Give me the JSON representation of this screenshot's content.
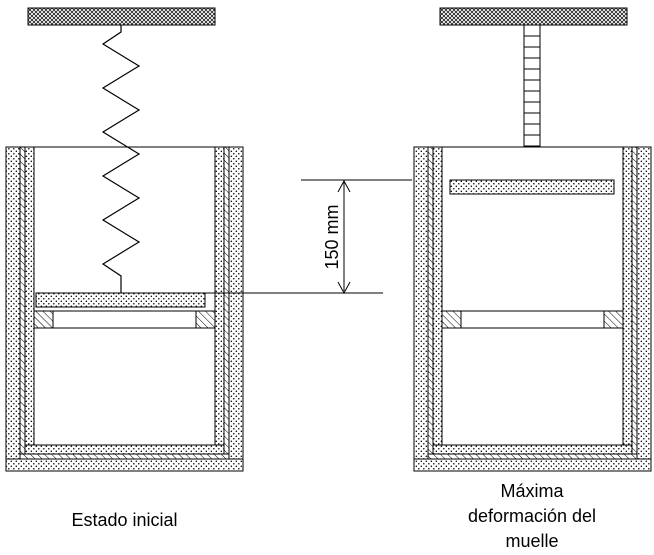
{
  "diagram": {
    "left_state": {
      "caption": "Estado inicial"
    },
    "right_state": {
      "caption_lines": [
        "Máxima",
        "deformación del",
        "muelle"
      ]
    },
    "dimension": {
      "label": "150 mm"
    }
  }
}
